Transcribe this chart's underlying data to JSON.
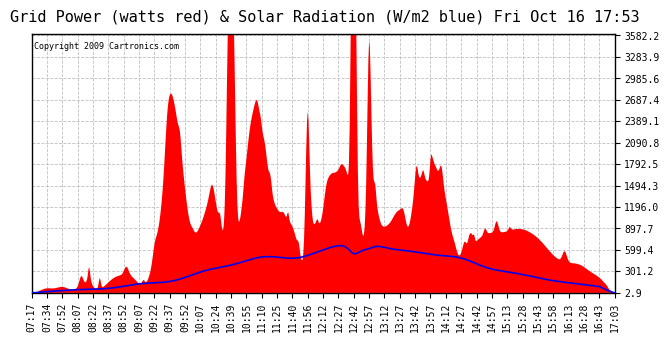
{
  "title": "Grid Power (watts red) & Solar Radiation (W/m2 blue) Fri Oct 16 17:53",
  "copyright_text": "Copyright 2009 Cartronics.com",
  "y_ticks": [
    2.9,
    301.2,
    599.4,
    897.7,
    1196.0,
    1494.3,
    1792.5,
    2090.8,
    2389.1,
    2687.4,
    2985.6,
    3283.9,
    3582.2
  ],
  "x_labels": [
    "07:17",
    "07:34",
    "07:52",
    "08:07",
    "08:22",
    "08:37",
    "08:52",
    "09:07",
    "09:22",
    "09:37",
    "09:52",
    "10:07",
    "10:24",
    "10:39",
    "10:55",
    "11:10",
    "11:25",
    "11:40",
    "11:56",
    "12:12",
    "12:27",
    "12:42",
    "12:57",
    "13:12",
    "13:27",
    "13:42",
    "13:57",
    "14:12",
    "14:27",
    "14:42",
    "14:57",
    "15:13",
    "15:28",
    "15:43",
    "15:58",
    "16:13",
    "16:28",
    "16:43",
    "17:03"
  ],
  "bg_color": "#ffffff",
  "plot_bg_color": "#ffffff",
  "grid_color": "#c0c0c0",
  "red_color": "#ff0000",
  "blue_color": "#0000ee",
  "title_fontsize": 11,
  "tick_fontsize": 7.0
}
